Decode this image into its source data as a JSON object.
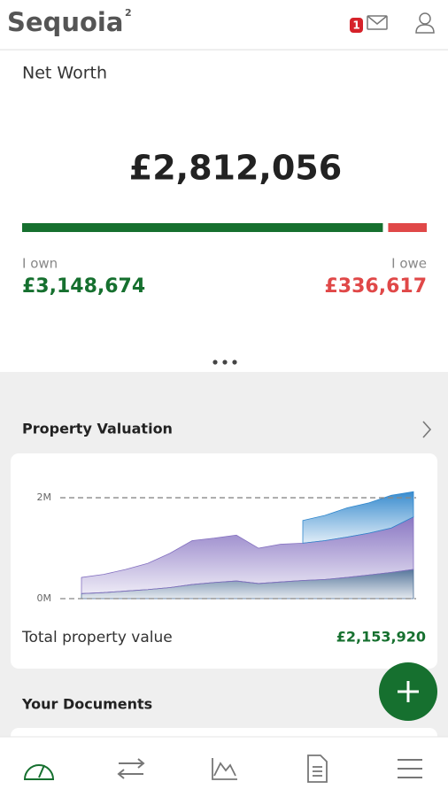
{
  "header": {
    "logo": "Sequoia",
    "logo_superscript": "2",
    "badge": "1"
  },
  "net_worth": {
    "title": "Net Worth",
    "value": 2812056,
    "value_label": "£2,812,056",
    "own": {
      "label": "I own",
      "value": 3148674,
      "value_label": "£3,148,674",
      "color": "#16702f"
    },
    "owe": {
      "label": "I owe",
      "value": 336617,
      "value_label": "£336,617",
      "color": "#e04848"
    }
  },
  "property": {
    "title": "Property Valuation",
    "total_label": "Total property value",
    "total_value": 2153920,
    "total_value_label": "£2,153,920"
  },
  "chart_data": {
    "type": "area",
    "stacked": true,
    "categories": [
      null,
      null,
      null,
      null,
      null,
      null,
      null,
      null,
      null,
      null,
      null,
      null,
      null,
      null,
      null,
      null
    ],
    "series": [
      {
        "color": "#4d6f96",
        "values": [
          0.1,
          0.12,
          0.15,
          0.18,
          0.22,
          0.28,
          0.32,
          0.35,
          0.3,
          0.33,
          0.36,
          0.38,
          0.42,
          0.47,
          0.52,
          0.58
        ]
      },
      {
        "color": "#8470c0",
        "values": [
          0.32,
          0.36,
          0.43,
          0.52,
          0.68,
          0.87,
          0.88,
          0.91,
          0.7,
          0.75,
          0.74,
          0.77,
          0.8,
          0.83,
          0.88,
          1.04
        ]
      },
      {
        "color": "#2f86cc",
        "values": [
          null,
          null,
          null,
          null,
          null,
          null,
          null,
          null,
          null,
          null,
          0.45,
          0.5,
          0.58,
          0.6,
          0.65,
          0.5
        ]
      }
    ],
    "ylim": [
      0,
      2.3
    ],
    "yticks": [
      {
        "value": 0,
        "label": "0M"
      },
      {
        "value": 2,
        "label": "2M"
      }
    ],
    "grid": true
  },
  "documents": {
    "title": "Your Documents"
  }
}
